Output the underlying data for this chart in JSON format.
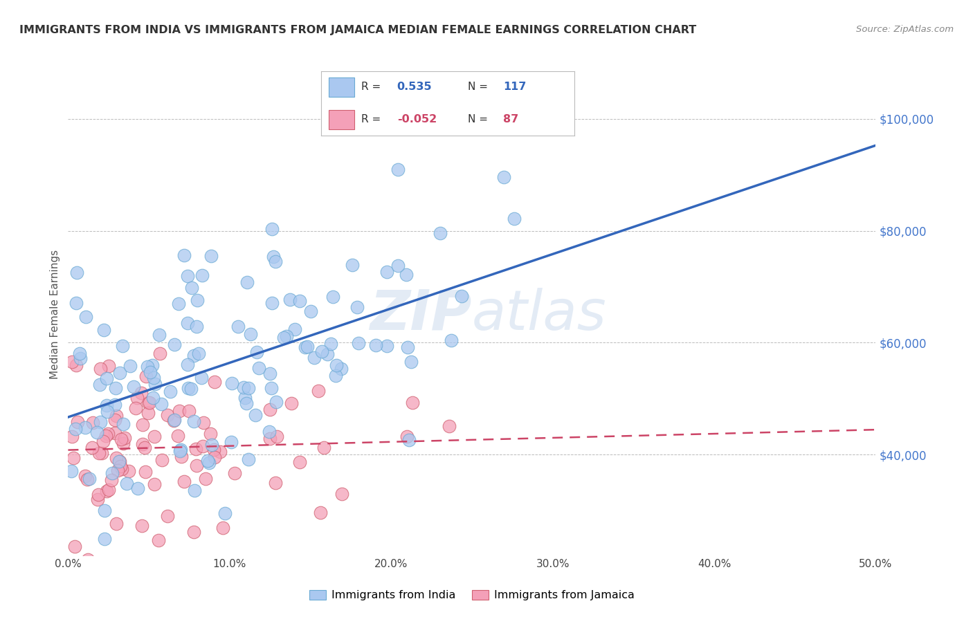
{
  "title": "IMMIGRANTS FROM INDIA VS IMMIGRANTS FROM JAMAICA MEDIAN FEMALE EARNINGS CORRELATION CHART",
  "source": "Source: ZipAtlas.com",
  "ylabel": "Median Female Earnings",
  "xlim": [
    0.0,
    0.5
  ],
  "ylim": [
    22000,
    108000
  ],
  "xtick_vals": [
    0.0,
    0.1,
    0.2,
    0.3,
    0.4,
    0.5
  ],
  "xtick_labels": [
    "0.0%",
    "10.0%",
    "20.0%",
    "30.0%",
    "40.0%",
    "50.0%"
  ],
  "ytick_values": [
    40000,
    60000,
    80000,
    100000
  ],
  "ytick_labels": [
    "$40,000",
    "$60,000",
    "$80,000",
    "$100,000"
  ],
  "india_R": 0.535,
  "india_N": 117,
  "jamaica_R": -0.052,
  "jamaica_N": 87,
  "india_color": "#aac8f0",
  "india_edge": "#6aaad4",
  "jamaica_color": "#f4a0b8",
  "jamaica_edge": "#d06070",
  "line_india_color": "#3366bb",
  "line_jamaica_color": "#cc4466",
  "watermark_color": "#d0dff0",
  "background_color": "#ffffff",
  "grid_color": "#bbbbbb",
  "title_color": "#333333",
  "source_color": "#888888",
  "tick_color": "#4477cc",
  "ylabel_color": "#555555"
}
